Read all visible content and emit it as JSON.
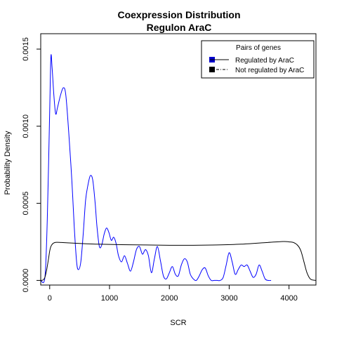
{
  "chart_data": {
    "type": "line",
    "title": "Coexpression Distribution",
    "subtitle": "Regulon AraC",
    "xlabel": "SCR",
    "ylabel": "Probability Density",
    "xlim": [
      -150,
      4450
    ],
    "ylim": [
      -3e-05,
      0.0016
    ],
    "x_ticks": [
      0,
      1000,
      2000,
      3000,
      4000
    ],
    "x_tick_labels": [
      "0",
      "1000",
      "2000",
      "3000",
      "4000"
    ],
    "y_ticks": [
      0,
      0.0005,
      0.001,
      0.0015
    ],
    "y_tick_labels": [
      "0.0000",
      "0.0005",
      "0.0010",
      "0.0015"
    ],
    "legend": {
      "title": "Pairs of genes",
      "position": "top-right",
      "entries": [
        {
          "label": "Regulated by  AraC",
          "color": "#0000cc",
          "line": "solid"
        },
        {
          "label": "Not regulated by  AraC",
          "color": "#000000",
          "line": "dashdot"
        }
      ]
    },
    "series": [
      {
        "name": "Regulated by  AraC",
        "color": "#0000ff",
        "x": [
          -150,
          -80,
          -40,
          0,
          20,
          40,
          70,
          100,
          130,
          180,
          230,
          270,
          320,
          370,
          410,
          450,
          480,
          520,
          560,
          600,
          640,
          680,
          720,
          760,
          790,
          830,
          870,
          910,
          950,
          990,
          1030,
          1070,
          1110,
          1150,
          1200,
          1250,
          1300,
          1350,
          1400,
          1450,
          1500,
          1550,
          1600,
          1650,
          1700,
          1750,
          1800,
          1850,
          1900,
          1950,
          2000,
          2050,
          2100,
          2150,
          2200,
          2250,
          2300,
          2350,
          2400,
          2450,
          2500,
          2550,
          2600,
          2650,
          2700,
          2750,
          2800,
          2850,
          2900,
          2950,
          3000,
          3050,
          3100,
          3150,
          3200,
          3250,
          3300,
          3350,
          3400,
          3450,
          3500,
          3550,
          3600,
          3650,
          3700
        ],
        "values": [
          0.0,
          2e-05,
          0.0004,
          0.0011,
          0.00145,
          0.00138,
          0.0012,
          0.00108,
          0.00112,
          0.0012,
          0.00125,
          0.0012,
          0.00095,
          0.00065,
          0.00035,
          0.00012,
          7e-05,
          0.00012,
          0.0003,
          0.00052,
          0.00062,
          0.00068,
          0.00065,
          0.0005,
          0.00035,
          0.00022,
          0.00023,
          0.0003,
          0.00034,
          0.00031,
          0.00026,
          0.00028,
          0.00024,
          0.00016,
          0.00012,
          0.00016,
          0.00011,
          6e-05,
          0.00012,
          0.0002,
          0.00022,
          0.00017,
          0.0002,
          0.00016,
          5e-05,
          0.00014,
          0.00022,
          0.00013,
          3e-05,
          1e-05,
          5e-05,
          9e-05,
          4e-05,
          3e-05,
          0.0001,
          0.00014,
          0.00012,
          4e-05,
          1e-05,
          0.0,
          3e-05,
          7e-05,
          8e-05,
          3e-05,
          0.0,
          0.0,
          0.0,
          0.0,
          2e-05,
          0.0001,
          0.00018,
          0.00012,
          4e-05,
          7e-05,
          0.0001,
          9e-05,
          0.0001,
          6e-05,
          2e-05,
          4e-05,
          0.0001,
          6e-05,
          1e-05,
          0.0,
          0.0
        ]
      },
      {
        "name": "Not regulated by  AraC",
        "color": "#000000",
        "x": [
          -150,
          -110,
          -80,
          -50,
          -20,
          0,
          20,
          50,
          80,
          120,
          200,
          300,
          500,
          800,
          1200,
          1600,
          2000,
          2400,
          2800,
          3200,
          3600,
          3900,
          4000,
          4080,
          4150,
          4200,
          4250,
          4300,
          4360,
          4450
        ],
        "values": [
          0.0,
          3e-06,
          2e-05,
          7e-05,
          0.00014,
          0.00019,
          0.00022,
          0.000238,
          0.000245,
          0.000247,
          0.000246,
          0.000244,
          0.00024,
          0.000235,
          0.000232,
          0.00023,
          0.000228,
          0.000228,
          0.00023,
          0.000235,
          0.000245,
          0.000252,
          0.00025,
          0.000245,
          0.000225,
          0.00019,
          0.00012,
          5e-05,
          8e-06,
          0.0
        ]
      }
    ]
  }
}
